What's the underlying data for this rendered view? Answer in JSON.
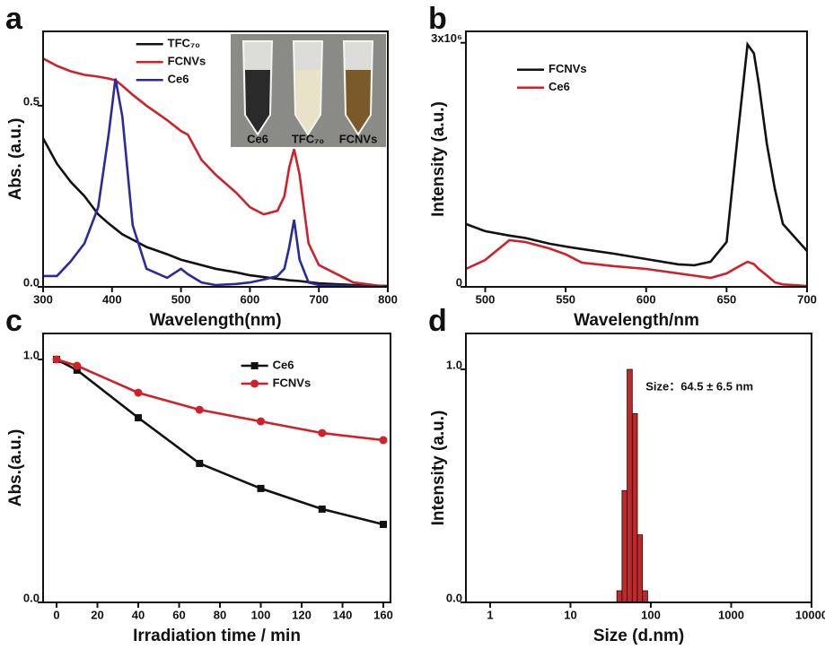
{
  "chart_data": [
    {
      "type": "line",
      "panel_label": "a",
      "x_label": "Wavelength(nm)",
      "y_label": "Abs. (a.u.)",
      "x": [
        300,
        320,
        340,
        360,
        380,
        395,
        405,
        415,
        430,
        450,
        480,
        500,
        510,
        530,
        550,
        580,
        600,
        620,
        640,
        650,
        657,
        664,
        672,
        685,
        700,
        750,
        800
      ],
      "series": [
        {
          "name": "TFC₇₀",
          "color": "#111111",
          "values": [
            0.41,
            0.34,
            0.29,
            0.25,
            0.2,
            0.175,
            0.16,
            0.145,
            0.13,
            0.11,
            0.09,
            0.075,
            0.07,
            0.06,
            0.05,
            0.04,
            0.032,
            0.027,
            0.022,
            0.02,
            0.018,
            0.017,
            0.016,
            0.013,
            0.01,
            0.005,
            0.0025
          ]
        },
        {
          "name": "FCNVs",
          "color": "#d0202a",
          "values": [
            0.63,
            0.61,
            0.595,
            0.585,
            0.58,
            0.575,
            0.57,
            0.555,
            0.53,
            0.5,
            0.46,
            0.43,
            0.42,
            0.35,
            0.31,
            0.26,
            0.22,
            0.2,
            0.21,
            0.25,
            0.33,
            0.38,
            0.31,
            0.12,
            0.06,
            0.012,
            0
          ]
        },
        {
          "name": "Ce6",
          "color": "#2a2a9a",
          "values": [
            0.03,
            0.03,
            0.07,
            0.12,
            0.22,
            0.42,
            0.575,
            0.47,
            0.17,
            0.05,
            0.025,
            0.05,
            0.035,
            0.012,
            0.005,
            0.008,
            0.012,
            0.02,
            0.03,
            0.05,
            0.11,
            0.185,
            0.075,
            0.012,
            0.005,
            0.002,
            0
          ]
        }
      ],
      "xlim": [
        300,
        800
      ],
      "xticks": [
        300,
        400,
        500,
        600,
        700,
        800
      ],
      "ylim": [
        0,
        0.705
      ],
      "yticks": [
        {
          "value": 0,
          "label": "0.0"
        },
        {
          "value": 0.5,
          "label": "0.5"
        }
      ],
      "legend": "upper center",
      "inset_labels": [
        "Ce6",
        "TFC₇₀",
        "FCNVs"
      ]
    },
    {
      "type": "line",
      "panel_label": "b",
      "x_label": "Wavelength/nm",
      "y_label": "Intensity (a.u.)",
      "x": [
        488,
        500,
        515,
        525,
        540,
        550,
        560,
        580,
        600,
        620,
        630,
        640,
        650,
        657,
        663,
        667,
        670,
        675,
        680,
        685,
        700
      ],
      "series": [
        {
          "name": "FCNVs",
          "color": "#111111",
          "values": [
            772000,
            684000,
            630000,
            600000,
            530000,
            496000,
            465000,
            408000,
            342000,
            276000,
            265000,
            309000,
            551000,
            1875000,
            2980000,
            2870000,
            2500000,
            1760000,
            1200000,
            772000,
            441000
          ]
        },
        {
          "name": "Ce6",
          "color": "#d0202a",
          "values": [
            220000,
            331000,
            573000,
            551000,
            470000,
            400000,
            298000,
            254000,
            220000,
            165000,
            138000,
            110000,
            165000,
            243000,
            309000,
            280000,
            220000,
            140000,
            55000,
            30000,
            11000
          ]
        }
      ],
      "xlim": [
        488,
        700
      ],
      "xticks": [
        500,
        550,
        600,
        650,
        700
      ],
      "ylim": [
        0,
        3140000
      ],
      "yticks": [
        0,
        {
          "value": 3000000,
          "label": "3x10⁶"
        }
      ],
      "legend": "upper left"
    },
    {
      "type": "line",
      "panel_label": "c",
      "x_label": "Irradiation time / min",
      "y_label": "Abs.(a.u.)",
      "x": [
        0,
        10,
        40,
        70,
        100,
        130,
        160
      ],
      "series": [
        {
          "name": "Ce6",
          "color": "#111111",
          "marker": "square",
          "values": [
            1.0,
            0.956,
            0.76,
            0.572,
            0.469,
            0.384,
            0.321
          ]
        },
        {
          "name": "FCNVs",
          "color": "#d0202a",
          "marker": "circle",
          "values": [
            1.0,
            0.974,
            0.863,
            0.793,
            0.745,
            0.697,
            0.668
          ]
        }
      ],
      "xlim": [
        -6.6,
        163.5
      ],
      "xticks": [
        0,
        20,
        40,
        60,
        80,
        100,
        120,
        140,
        160
      ],
      "ylim": [
        0,
        1.107
      ],
      "yticks": [
        {
          "value": 0,
          "label": "0.0"
        },
        {
          "value": 1,
          "label": "1.0"
        }
      ],
      "legend": "upper right"
    },
    {
      "type": "histogram",
      "panel_label": "d",
      "x_label": "Size (d.nm)",
      "y_label": "Intensity (a.u.)",
      "bins": [
        37.8,
        43.8,
        50.7,
        58.8,
        68.1,
        78.8,
        91.3
      ],
      "values": [
        0.05,
        0.48,
        1.0,
        0.81,
        0.29,
        0.05
      ],
      "color": "#c0282a",
      "xscale": "log",
      "xlim": [
        0.5,
        10000
      ],
      "xticks": [
        1,
        10,
        100,
        1000,
        10000
      ],
      "ylim": [
        0,
        1.154
      ],
      "yticks": [
        {
          "value": 0,
          "label": "0.0"
        },
        {
          "value": 1,
          "label": "1.0"
        }
      ],
      "annotation": "Size：64.5 ± 6.5 nm"
    }
  ]
}
